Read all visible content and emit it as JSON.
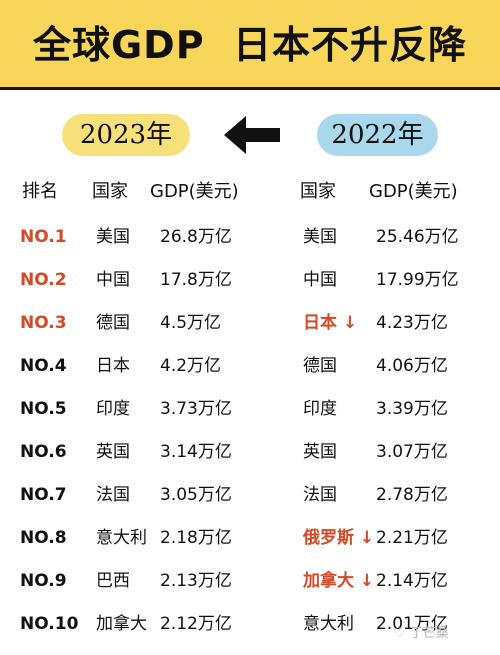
{
  "header": {
    "title": "全球GDP  日本不升反降"
  },
  "years": {
    "left": "2023年",
    "right": "2022年"
  },
  "columns": {
    "rank": "排名",
    "country_2023": "国家",
    "gdp_2023": "GDP(美元)",
    "country_2022": "国家",
    "gdp_2022": "GDP(美元)"
  },
  "rows": [
    {
      "rank": "NO.1",
      "country_2023": "美国",
      "gdp_2023": "26.8万亿",
      "country_2022": "美国",
      "gdp_2022": "25.46万亿"
    },
    {
      "rank": "NO.2",
      "country_2023": "中国",
      "gdp_2023": "17.8万亿",
      "country_2022": "中国",
      "gdp_2022": "17.99万亿"
    },
    {
      "rank": "NO.3",
      "country_2023": "德国",
      "gdp_2023": "4.5万亿",
      "country_2022": "日本 ↓",
      "gdp_2022": "4.23万亿"
    },
    {
      "rank": "NO.4",
      "country_2023": "日本",
      "gdp_2023": "4.2万亿",
      "country_2022": "德国",
      "gdp_2022": "4.06万亿"
    },
    {
      "rank": "NO.5",
      "country_2023": "印度",
      "gdp_2023": "3.73万亿",
      "country_2022": "印度",
      "gdp_2022": "3.39万亿"
    },
    {
      "rank": "NO.6",
      "country_2023": "英国",
      "gdp_2023": "3.14万亿",
      "country_2022": "英国",
      "gdp_2022": "3.07万亿"
    },
    {
      "rank": "NO.7",
      "country_2023": "法国",
      "gdp_2023": "3.05万亿",
      "country_2022": "法国",
      "gdp_2022": "2.78万亿"
    },
    {
      "rank": "NO.8",
      "country_2023": "意大利",
      "gdp_2023": "2.18万亿",
      "country_2022": "俄罗斯 ↓",
      "gdp_2022": "2.21万亿"
    },
    {
      "rank": "NO.9",
      "country_2023": "巴西",
      "gdp_2023": "2.13万亿",
      "country_2022": "加拿大 ↓",
      "gdp_2022": "2.14万亿"
    },
    {
      "rank": "NO.10",
      "country_2023": "加拿大",
      "gdp_2023": "2.12万亿",
      "country_2022": "意大利",
      "gdp_2022": "2.01万亿"
    }
  ],
  "watermark": "♡ 丁芒桑",
  "colors": {
    "header_bg": "#f7d65a",
    "pill_2023": "#f7e07a",
    "pill_2022": "#a9d8ec",
    "highlight": "#d24a26",
    "text": "#111111"
  },
  "icons": {
    "arrow": "left-arrow-icon"
  }
}
